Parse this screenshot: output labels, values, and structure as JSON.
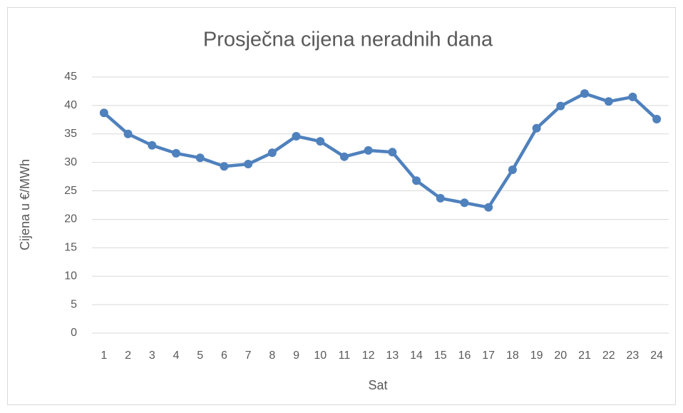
{
  "chart_data": {
    "type": "line",
    "title": "Prosječna cijena neradnih dana",
    "x_label": "Sat",
    "y_label": "Cijena u €/MWh",
    "categories": [
      "1",
      "2",
      "3",
      "4",
      "5",
      "6",
      "7",
      "8",
      "9",
      "10",
      "11",
      "12",
      "13",
      "14",
      "15",
      "16",
      "17",
      "18",
      "19",
      "20",
      "21",
      "22",
      "23",
      "24"
    ],
    "series": [
      {
        "name": "Prosječna cijena",
        "color": "#4f81bd",
        "values": [
          38.7,
          35.0,
          33.0,
          31.6,
          30.8,
          29.3,
          29.7,
          31.7,
          34.6,
          33.7,
          31.0,
          32.1,
          31.8,
          26.8,
          23.7,
          22.9,
          22.1,
          28.7,
          36.0,
          39.9,
          42.1,
          40.7,
          41.5,
          37.6
        ]
      }
    ],
    "ylim": [
      0,
      45
    ],
    "yticks": [
      0,
      5,
      10,
      15,
      20,
      25,
      30,
      35,
      40,
      45
    ],
    "grid": true
  }
}
